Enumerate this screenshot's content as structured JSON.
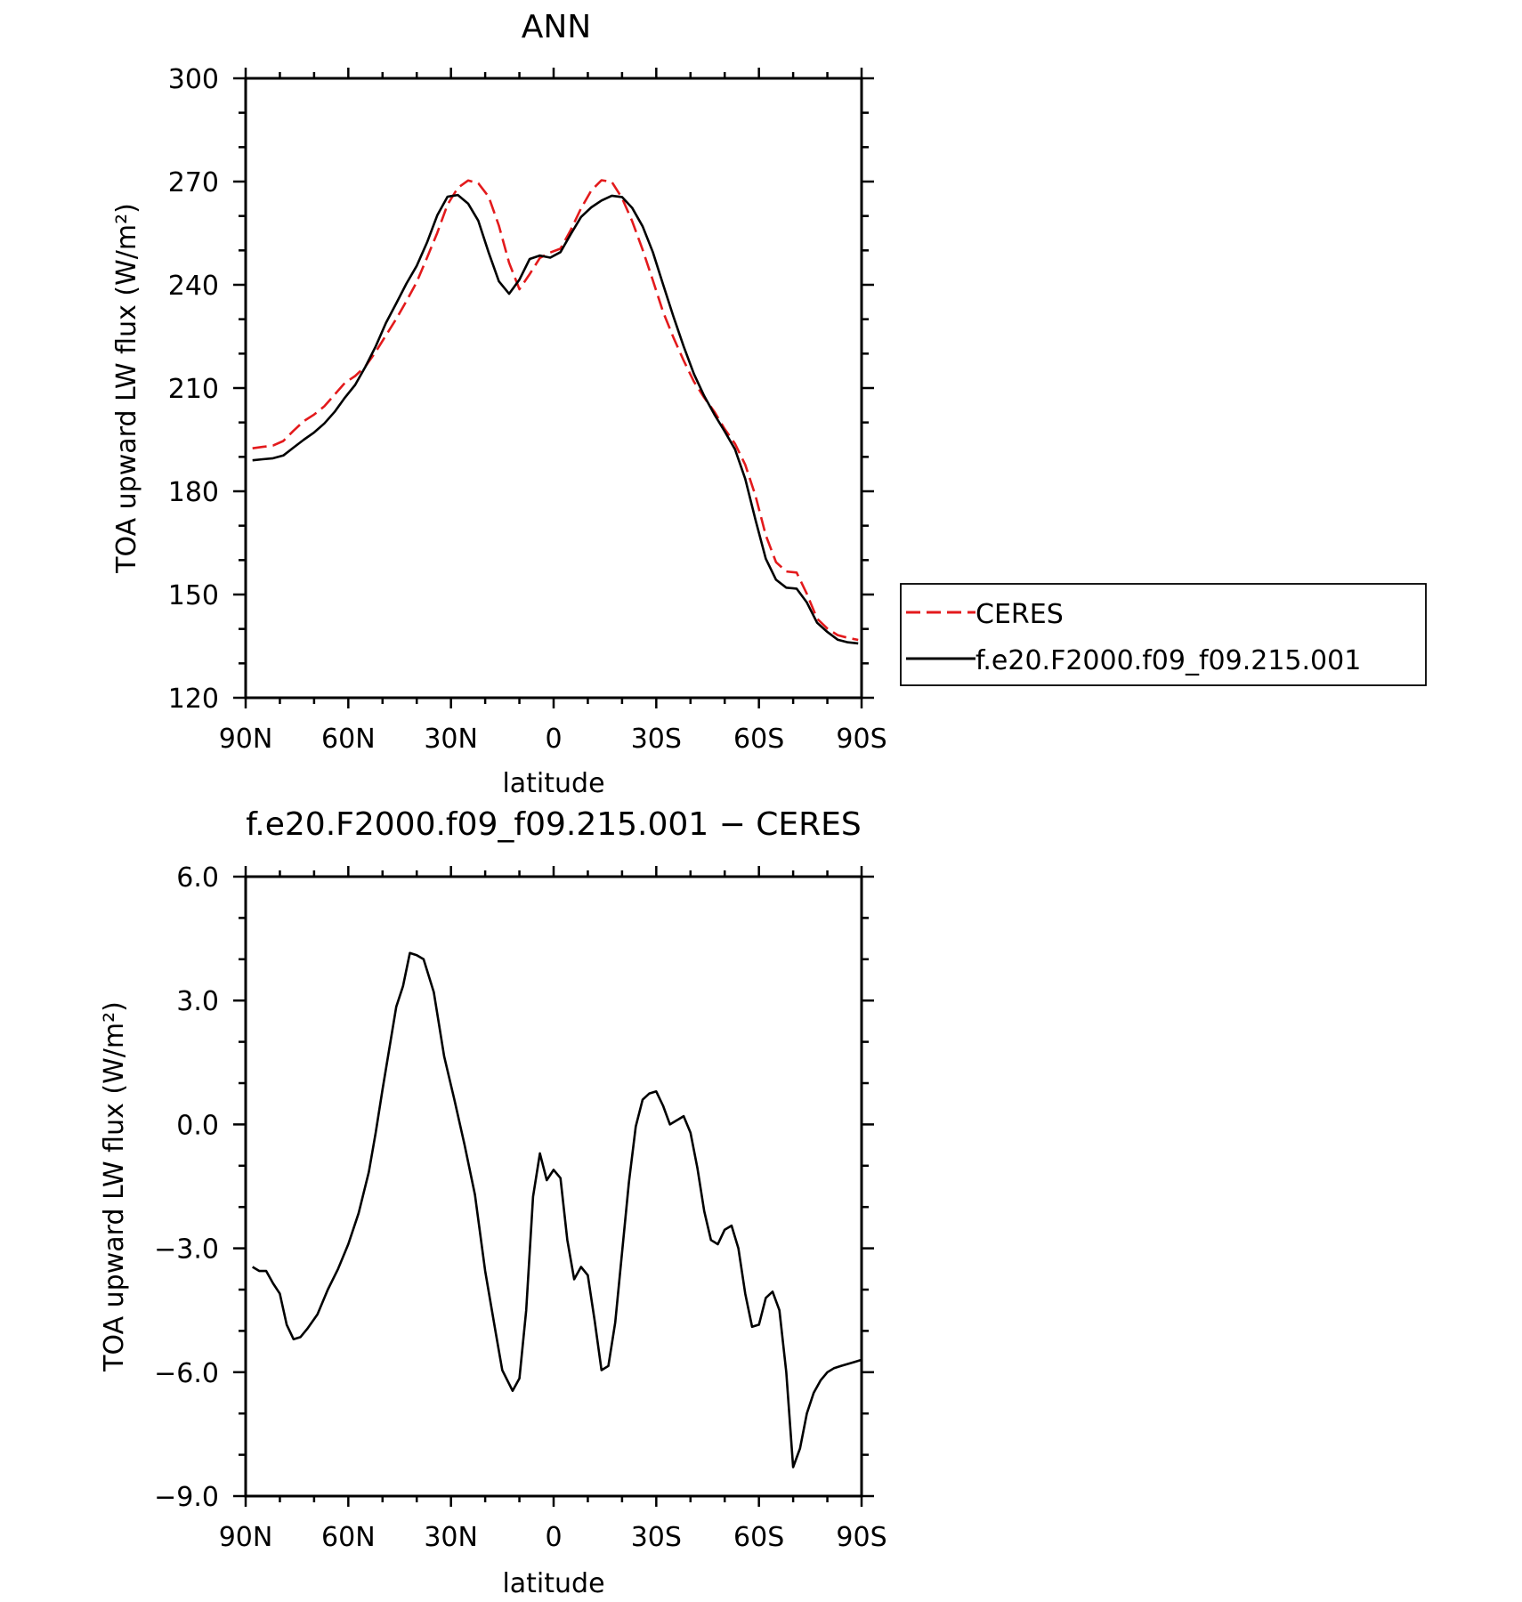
{
  "chart_data": [
    {
      "type": "line",
      "title": "ANN",
      "xlabel": "latitude",
      "ylabel": "TOA upward LW flux (W/m²)",
      "xlim": [
        90,
        -90
      ],
      "ylim": [
        120,
        300
      ],
      "x_ticks": [
        90,
        60,
        30,
        0,
        -30,
        -60,
        -90
      ],
      "x_tick_labels": [
        "90N",
        "60N",
        "30N",
        "0",
        "30S",
        "60S",
        "90S"
      ],
      "y_ticks": [
        120,
        150,
        180,
        210,
        240,
        270,
        300
      ],
      "y_tick_labels": [
        "120",
        "150",
        "180",
        "210",
        "240",
        "270",
        "300"
      ],
      "grid": false,
      "legend_position": "right",
      "series": [
        {
          "name": "CERES",
          "color": "#e31a1c",
          "dash": "dashed",
          "x": [
            88,
            85,
            82,
            79,
            76,
            73,
            70,
            67,
            64,
            61,
            58,
            55,
            52,
            49,
            46,
            43,
            40,
            37,
            34,
            31,
            28,
            25,
            22,
            19,
            16,
            13,
            10,
            7,
            4,
            1,
            -2,
            -5,
            -8,
            -11,
            -14,
            -17,
            -20,
            -23,
            -26,
            -29,
            -32,
            -35,
            -38,
            -41,
            -44,
            -47,
            -50,
            -53,
            -56,
            -59,
            -62,
            -65,
            -68,
            -71,
            -74,
            -77,
            -80,
            -83,
            -86,
            -89
          ],
          "y": [
            192.5,
            192.9,
            193.3,
            194.6,
            197.6,
            200.4,
            202.3,
            204.7,
            208.1,
            211.5,
            213.5,
            216.3,
            220.5,
            225.3,
            230.1,
            235.3,
            240.8,
            247.9,
            255.1,
            263.3,
            268.2,
            270.3,
            269.5,
            265.6,
            257.2,
            246.4,
            238.7,
            243.1,
            247.8,
            249.4,
            250.5,
            255.9,
            262.2,
            267.4,
            270.4,
            269.9,
            265.2,
            258.4,
            250.2,
            241.3,
            232.1,
            224.7,
            218.0,
            211.9,
            207.2,
            203.1,
            198.1,
            193.8,
            187.7,
            178.7,
            167.2,
            159.4,
            156.7,
            156.4,
            150.2,
            143.0,
            140.1,
            138.2,
            137.4,
            136.8
          ]
        },
        {
          "name": "f.e20.F2000.f09_f09.215.001",
          "color": "#000000",
          "dash": "solid",
          "x": [
            88,
            85,
            82,
            79,
            76,
            73,
            70,
            67,
            64,
            61,
            58,
            55,
            52,
            49,
            46,
            43,
            40,
            37,
            34,
            31,
            28,
            25,
            22,
            19,
            16,
            13,
            10,
            7,
            4,
            1,
            -2,
            -5,
            -8,
            -11,
            -14,
            -17,
            -20,
            -23,
            -26,
            -29,
            -32,
            -35,
            -38,
            -41,
            -44,
            -47,
            -50,
            -53,
            -56,
            -59,
            -62,
            -65,
            -68,
            -71,
            -74,
            -77,
            -80,
            -83,
            -86,
            -89
          ],
          "y": [
            189.0,
            189.3,
            189.6,
            190.4,
            192.7,
            195.0,
            197.1,
            199.7,
            203.1,
            207.2,
            210.9,
            216.2,
            222.1,
            228.9,
            234.6,
            240.4,
            245.5,
            252.3,
            260.2,
            265.6,
            266.1,
            263.6,
            258.6,
            249.4,
            241.0,
            237.4,
            241.5,
            247.5,
            248.5,
            247.9,
            249.5,
            254.7,
            259.7,
            262.5,
            264.5,
            265.9,
            265.5,
            262.3,
            257.0,
            249.5,
            240.1,
            230.8,
            222.1,
            214.1,
            207.7,
            202.3,
            197.4,
            192.2,
            183.6,
            171.7,
            160.4,
            154.3,
            152.0,
            151.7,
            147.7,
            141.8,
            139.1,
            136.9,
            136.1,
            135.8
          ]
        }
      ]
    },
    {
      "type": "line",
      "title": "f.e20.F2000.f09_f09.215.001 − CERES",
      "xlabel": "latitude",
      "ylabel": "TOA upward LW flux (W/m²)",
      "xlim": [
        90,
        -90
      ],
      "ylim": [
        -9.0,
        6.0
      ],
      "x_ticks": [
        90,
        60,
        30,
        0,
        -30,
        -60,
        -90
      ],
      "x_tick_labels": [
        "90N",
        "60N",
        "30N",
        "0",
        "30S",
        "60S",
        "90S"
      ],
      "y_ticks": [
        -9.0,
        -6.0,
        -3.0,
        0.0,
        3.0,
        6.0
      ],
      "y_tick_labels": [
        "−9.0",
        "−6.0",
        "−3.0",
        "0.0",
        "3.0",
        "6.0"
      ],
      "grid": false,
      "series": [
        {
          "color": "#000000",
          "dash": "solid",
          "x": [
            88,
            86,
            84,
            82,
            80,
            78,
            76,
            74,
            72,
            69,
            66,
            63,
            60,
            57,
            54,
            52,
            50,
            48,
            46,
            44,
            42,
            40,
            38,
            35,
            32,
            29,
            26,
            23,
            20,
            17,
            15,
            12,
            10,
            8,
            6,
            4,
            2,
            0,
            -2,
            -4,
            -6,
            -8,
            -10,
            -12,
            -14,
            -16,
            -18,
            -20,
            -22,
            -24,
            -26,
            -28,
            -30,
            -32,
            -34,
            -36,
            -38,
            -40,
            -42,
            -44,
            -46,
            -48,
            -50,
            -52,
            -54,
            -56,
            -58,
            -60,
            -62,
            -64,
            -66,
            -68,
            -70,
            -72,
            -74,
            -76,
            -78,
            -80,
            -82,
            -84,
            -86,
            -88,
            -90
          ],
          "y": [
            -3.45,
            -3.55,
            -3.55,
            -3.85,
            -4.1,
            -4.85,
            -5.2,
            -5.15,
            -4.95,
            -4.6,
            -4.0,
            -3.5,
            -2.9,
            -2.15,
            -1.15,
            -0.2,
            0.85,
            1.85,
            2.85,
            3.35,
            4.15,
            4.1,
            4.0,
            3.2,
            1.65,
            0.6,
            -0.5,
            -1.7,
            -3.55,
            -5.0,
            -5.95,
            -6.45,
            -6.15,
            -4.5,
            -1.75,
            -0.7,
            -1.35,
            -1.1,
            -1.3,
            -2.8,
            -3.75,
            -3.45,
            -3.65,
            -4.75,
            -5.95,
            -5.85,
            -4.8,
            -3.1,
            -1.4,
            -0.05,
            0.6,
            0.75,
            0.8,
            0.45,
            0.0,
            0.1,
            0.2,
            -0.2,
            -1.05,
            -2.1,
            -2.8,
            -2.9,
            -2.55,
            -2.45,
            -3.0,
            -4.1,
            -4.9,
            -4.85,
            -4.2,
            -4.05,
            -4.5,
            -6.0,
            -8.3,
            -7.85,
            -7.0,
            -6.5,
            -6.2,
            -6.0,
            -5.9,
            -5.85,
            -5.8,
            -5.75,
            -5.7
          ]
        }
      ]
    }
  ]
}
